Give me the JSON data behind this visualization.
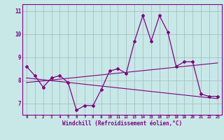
{
  "xlabel": "Windchill (Refroidissement éolien,°C)",
  "bg_color": "#c8e8e8",
  "line_color": "#800080",
  "grid_color": "#a0b8b8",
  "hours": [
    0,
    1,
    2,
    3,
    4,
    5,
    6,
    7,
    8,
    9,
    10,
    11,
    12,
    13,
    14,
    15,
    16,
    17,
    18,
    19,
    20,
    21,
    22,
    23
  ],
  "main_data": [
    8.6,
    8.2,
    7.7,
    8.1,
    8.2,
    7.9,
    6.7,
    6.9,
    6.9,
    7.6,
    8.4,
    8.5,
    8.3,
    9.7,
    10.8,
    9.7,
    10.8,
    10.1,
    8.6,
    8.8,
    8.8,
    7.4,
    7.3,
    7.3
  ],
  "trend_up_start": 7.9,
  "trend_up_end": 8.75,
  "trend_down_start": 8.1,
  "trend_down_end": 7.2,
  "ylim": [
    6.5,
    11.3
  ],
  "xlim": [
    -0.5,
    23.5
  ],
  "yticks": [
    7,
    8,
    9,
    10,
    11
  ],
  "xticks": [
    0,
    1,
    2,
    3,
    4,
    5,
    6,
    7,
    8,
    9,
    10,
    11,
    12,
    13,
    14,
    15,
    16,
    17,
    18,
    19,
    20,
    21,
    22,
    23
  ]
}
